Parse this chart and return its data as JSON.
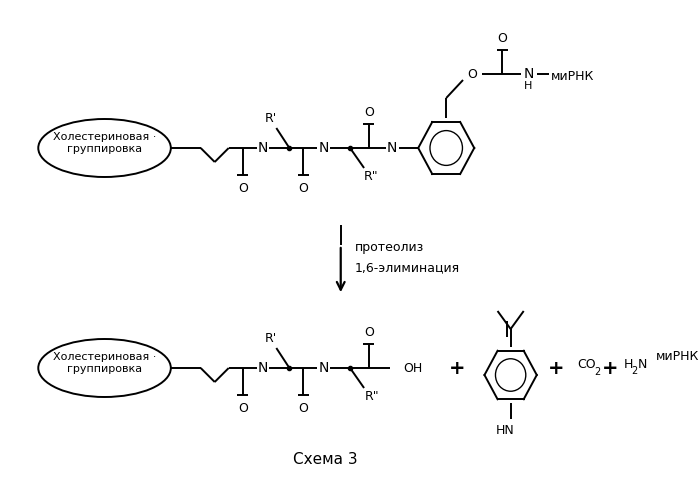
{
  "title": "Схема 3",
  "reaction_label1": "протеолиз",
  "reaction_label2": "1,6-элиминация",
  "cholesterol_label": "Холестериновая ·\nгруппировка",
  "cholesterol_label2": "Холестериновая ·\nгруппировка",
  "mirna_label": "миРНК",
  "background_color": "#ffffff",
  "line_color": "#000000",
  "fig_width": 6.99,
  "fig_height": 4.87,
  "dpi": 100
}
